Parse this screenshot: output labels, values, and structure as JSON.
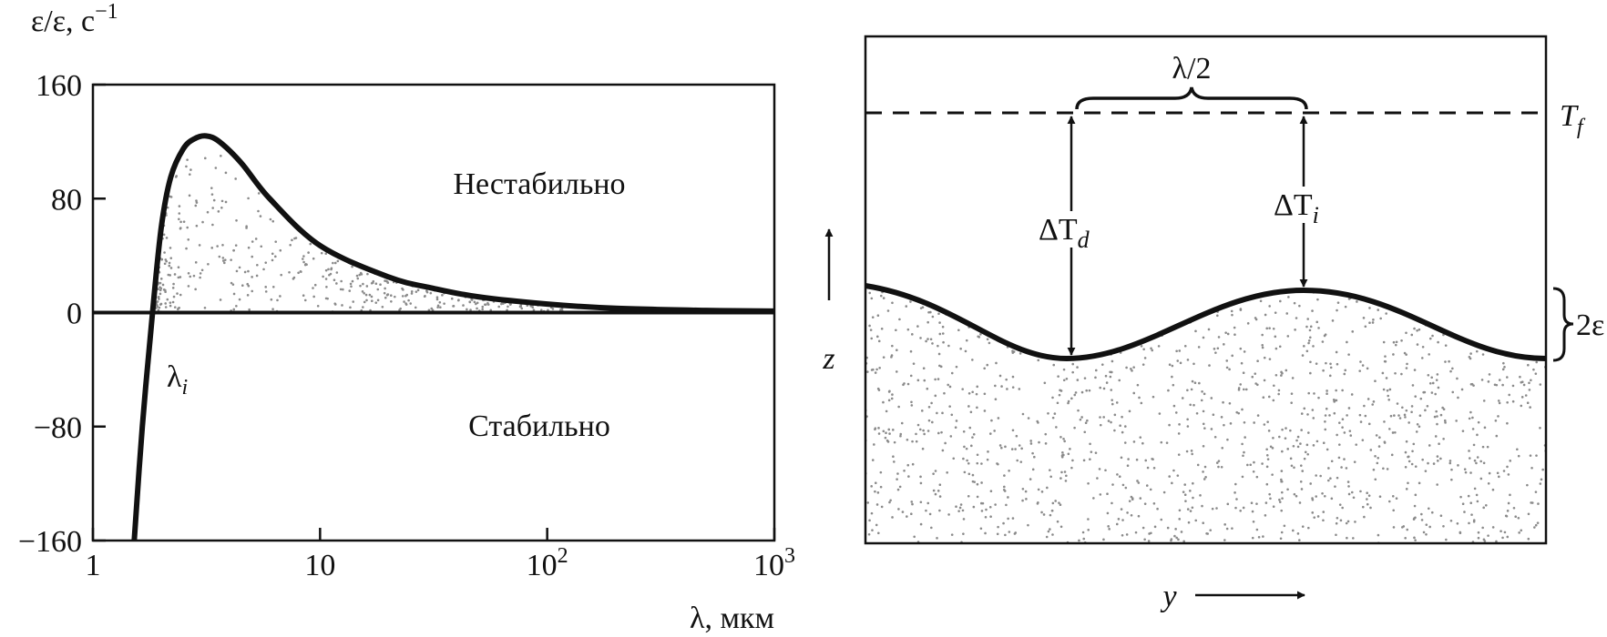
{
  "chart_data": {
    "type": "line",
    "ylabel": "ε/ε, с",
    "ylabel_sup": "−1",
    "xlabel": "λ, мкм",
    "xscale": "log",
    "xlim": [
      1,
      1000
    ],
    "ylim": [
      -160,
      160
    ],
    "x_ticks": [
      {
        "value": 1,
        "base": "1",
        "sup": ""
      },
      {
        "value": 10,
        "base": "10",
        "sup": ""
      },
      {
        "value": 100,
        "base": "10",
        "sup": "2"
      },
      {
        "value": 1000,
        "base": "10",
        "sup": "3"
      }
    ],
    "y_ticks": [
      160,
      80,
      0,
      -80,
      -160
    ],
    "y_tick_labels": [
      "160",
      "80",
      "0",
      "−80",
      "−160"
    ],
    "grid": false,
    "series": [
      {
        "x": [
          1.52,
          1.65,
          1.83,
          2.0,
          2.2,
          2.5,
          2.8,
          3.15,
          3.6,
          4.5,
          6,
          10,
          20,
          31.6,
          50,
          100,
          200,
          500,
          1000
        ],
        "y": [
          -160,
          -80,
          0,
          60,
          95,
          115,
          122,
          124,
          120,
          105,
          80,
          47,
          25,
          17,
          11,
          6,
          3,
          1.5,
          1
        ]
      }
    ],
    "annotations": {
      "unstable": "Нестабильно",
      "stable": "Стабильно",
      "lambda_i": "λ",
      "lambda_i_sub": "i"
    },
    "colors": {
      "curve": "#111111",
      "stipple": "#8a8a8a"
    }
  },
  "diagram": {
    "half_wavelength": "λ/2",
    "tf_label": "T",
    "tf_sub": "f",
    "delta_td": "ΔT",
    "delta_td_sub": "d",
    "delta_ti": "ΔT",
    "delta_ti_sub": "i",
    "z_axis": "z",
    "y_axis": "y",
    "amplitude": "2ε"
  }
}
